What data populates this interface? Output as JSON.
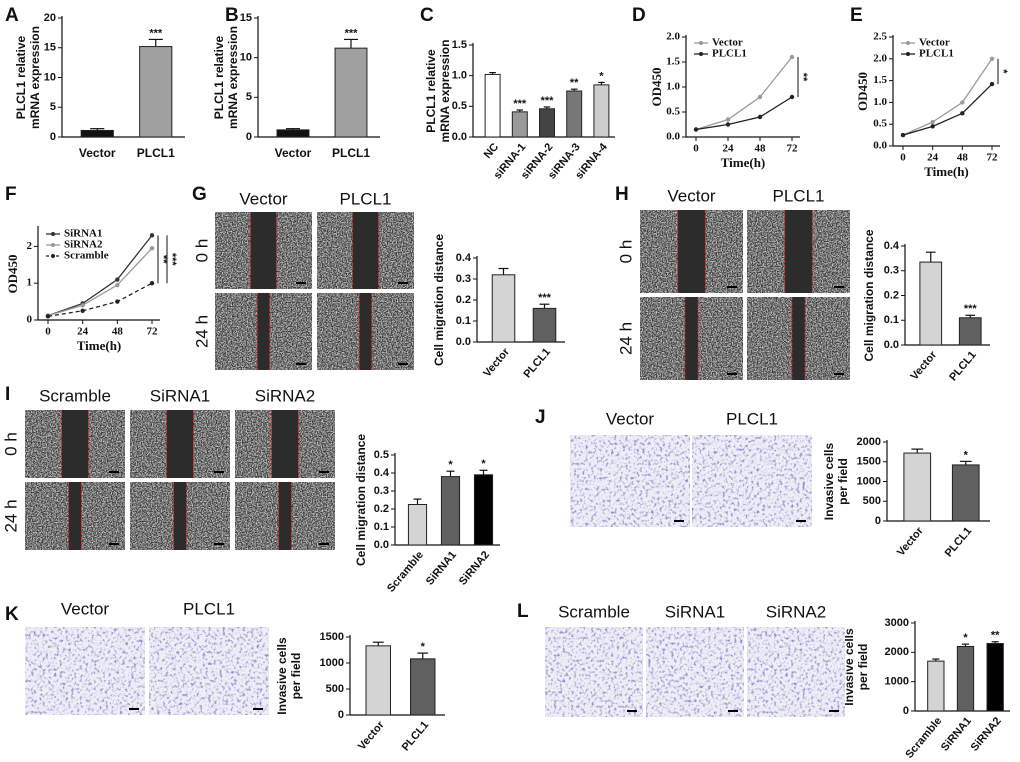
{
  "chart_data": [
    {
      "type": "bar",
      "panel": "A",
      "ylabel": [
        "PLCL1 relative",
        "mRNA expression"
      ],
      "categories": [
        "Vector",
        "PLCL1"
      ],
      "values": [
        1.1,
        15.2
      ],
      "errors": [
        0.3,
        1.2
      ],
      "annotations": [
        null,
        "***"
      ],
      "colors": [
        "#111111",
        "#a0a0a0"
      ],
      "ylim": [
        0,
        20
      ],
      "yticks": [
        0,
        5,
        10,
        15,
        20
      ]
    },
    {
      "type": "bar",
      "panel": "B",
      "ylabel": [
        "PLCL1 relative",
        "mRNA expression"
      ],
      "categories": [
        "Vector",
        "PLCL1"
      ],
      "values": [
        0.9,
        11.2
      ],
      "errors": [
        0.15,
        1.1
      ],
      "annotations": [
        null,
        "***"
      ],
      "colors": [
        "#111111",
        "#a0a0a0"
      ],
      "ylim": [
        0,
        15
      ],
      "yticks": [
        0,
        5,
        10,
        15
      ]
    },
    {
      "type": "bar",
      "panel": "C",
      "ylabel": [
        "PLCL1 relative",
        "mRNA expression"
      ],
      "categories": [
        "NC",
        "siRNA-1",
        "siRNA-2",
        "siRNA-3",
        "siRNA-4"
      ],
      "values": [
        1.02,
        0.41,
        0.46,
        0.75,
        0.85
      ],
      "errors": [
        0.03,
        0.03,
        0.03,
        0.03,
        0.04
      ],
      "annotations": [
        null,
        "***",
        "***",
        "**",
        "*"
      ],
      "colors": [
        "#ffffff",
        "#999999",
        "#444444",
        "#777777",
        "#cccccc"
      ],
      "ylim": [
        0,
        1.5
      ],
      "yticks": [
        {
          "value": 0,
          "label": "0.0"
        },
        0.5,
        {
          "value": 1,
          "label": "1.0"
        },
        1.5
      ]
    },
    {
      "type": "line",
      "panel": "D",
      "xlabel": "Time(h)",
      "ylabel": [
        "OD450"
      ],
      "x": [
        0,
        24,
        48,
        72
      ],
      "series": [
        {
          "name": "Vector",
          "color": "#9a9a9a",
          "values": [
            0.15,
            0.35,
            0.8,
            1.6
          ]
        },
        {
          "name": "PLCL1",
          "color": "#222222",
          "values": [
            0.15,
            0.25,
            0.4,
            0.8
          ]
        }
      ],
      "annotations": [
        "**"
      ],
      "xlim": [
        0,
        72
      ],
      "xticks": [
        0,
        24,
        48,
        72
      ],
      "ylim": [
        0,
        2
      ],
      "yticks": [
        {
          "value": 0,
          "label": "0.0"
        },
        0.5,
        {
          "value": 1,
          "label": "1.0"
        },
        1.5,
        {
          "value": 2,
          "label": "2.0"
        }
      ]
    },
    {
      "type": "line",
      "panel": "E",
      "xlabel": "Time(h)",
      "ylabel": [
        "OD450"
      ],
      "x": [
        0,
        24,
        48,
        72
      ],
      "series": [
        {
          "name": "Vector",
          "color": "#9a9a9a",
          "values": [
            0.25,
            0.55,
            1.0,
            2.0
          ]
        },
        {
          "name": "PLCL1",
          "color": "#222222",
          "values": [
            0.25,
            0.45,
            0.75,
            1.42
          ]
        }
      ],
      "annotations": [
        "*"
      ],
      "xlim": [
        0,
        72
      ],
      "xticks": [
        0,
        24,
        48,
        72
      ],
      "ylim": [
        0,
        2.5
      ],
      "yticks": [
        {
          "value": 0,
          "label": "0.0"
        },
        0.5,
        {
          "value": 1,
          "label": "1.0"
        },
        1.5,
        {
          "value": 2,
          "label": "2.0"
        },
        2.5
      ]
    },
    {
      "type": "line",
      "panel": "F",
      "xlabel": "Time(h)",
      "ylabel": [
        "OD450"
      ],
      "x": [
        0,
        24,
        48,
        72
      ],
      "series": [
        {
          "name": "SiRNA1",
          "color": "#333333",
          "values": [
            0.12,
            0.45,
            1.1,
            2.3
          ]
        },
        {
          "name": "SiRNA2",
          "color": "#999999",
          "values": [
            0.12,
            0.4,
            0.95,
            1.95
          ]
        },
        {
          "name": "Scramble",
          "color": "#222222",
          "dashed": true,
          "values": [
            0.1,
            0.25,
            0.5,
            1.0
          ]
        }
      ],
      "annotations": [
        "**",
        "***"
      ],
      "xlim": [
        0,
        72
      ],
      "xticks": [
        0,
        24,
        48,
        72
      ],
      "ylim": [
        0,
        2.5
      ],
      "yticks": [
        0,
        1,
        2
      ]
    },
    {
      "type": "bar",
      "panel": "G",
      "images": {
        "columns": [
          "Vector",
          "PLCL1"
        ],
        "rows": [
          "0 h",
          "24 h"
        ]
      },
      "ylabel": [
        "Cell migration distance"
      ],
      "categories": [
        "Vector",
        "PLCL1"
      ],
      "values": [
        0.32,
        0.16
      ],
      "errors": [
        0.03,
        0.02
      ],
      "annotations": [
        null,
        "***"
      ],
      "colors": [
        "#d4d4d4",
        "#606060"
      ],
      "ylim": [
        0,
        0.4
      ],
      "yticks": [
        {
          "value": 0,
          "label": "0.0"
        },
        0.1,
        0.2,
        0.3,
        0.4
      ]
    },
    {
      "type": "bar",
      "panel": "H",
      "images": {
        "columns": [
          "Vector",
          "PLCL1"
        ],
        "rows": [
          "0 h",
          "24 h"
        ]
      },
      "ylabel": [
        "Cell migration distance"
      ],
      "categories": [
        "Vector",
        "PLCL1"
      ],
      "values": [
        0.335,
        0.11
      ],
      "errors": [
        0.04,
        0.01
      ],
      "annotations": [
        null,
        "***"
      ],
      "colors": [
        "#d4d4d4",
        "#606060"
      ],
      "ylim": [
        0,
        0.4
      ],
      "yticks": [
        {
          "value": 0,
          "label": "0.0"
        },
        0.1,
        0.2,
        0.3,
        0.4
      ]
    },
    {
      "type": "bar",
      "panel": "I",
      "images": {
        "columns": [
          "Scramble",
          "SiRNA1",
          "SiRNA2"
        ],
        "rows": [
          "0 h",
          "24 h"
        ]
      },
      "ylabel": [
        "Cell migration distance"
      ],
      "categories": [
        "Scramble",
        "SiRNA1",
        "SiRNA2"
      ],
      "values": [
        0.225,
        0.38,
        0.39
      ],
      "errors": [
        0.03,
        0.03,
        0.025
      ],
      "annotations": [
        null,
        "*",
        "*"
      ],
      "colors": [
        "#d4d4d4",
        "#606060",
        "#000000"
      ],
      "ylim": [
        0,
        0.5
      ],
      "yticks": [
        {
          "value": 0,
          "label": "0.0"
        },
        0.1,
        0.2,
        0.3,
        0.4,
        0.5
      ]
    },
    {
      "type": "bar",
      "panel": "J",
      "images": {
        "columns": [
          "Vector",
          "PLCL1"
        ]
      },
      "ylabel": [
        "Invasive cells",
        "per field"
      ],
      "categories": [
        "Vector",
        "PLCL1"
      ],
      "values": [
        1720,
        1420
      ],
      "errors": [
        100,
        90
      ],
      "annotations": [
        null,
        "*"
      ],
      "colors": [
        "#d4d4d4",
        "#606060"
      ],
      "ylim": [
        0,
        2000
      ],
      "yticks": [
        0,
        500,
        1000,
        1500,
        2000
      ]
    },
    {
      "type": "bar",
      "panel": "K",
      "images": {
        "columns": [
          "Vector",
          "PLCL1"
        ]
      },
      "ylabel": [
        "Invasive cells",
        "per field"
      ],
      "categories": [
        "Vector",
        "PLCL1"
      ],
      "values": [
        1330,
        1080
      ],
      "errors": [
        70,
        110
      ],
      "annotations": [
        null,
        "*"
      ],
      "colors": [
        "#d4d4d4",
        "#606060"
      ],
      "ylim": [
        0,
        1500
      ],
      "yticks": [
        0,
        500,
        1000,
        1500
      ]
    },
    {
      "type": "bar",
      "panel": "L",
      "images": {
        "columns": [
          "Scramble",
          "SiRNA1",
          "SiRNA2"
        ]
      },
      "ylabel": [
        "Invasive cells",
        "per field"
      ],
      "categories": [
        "Scramble",
        "SiRNA1",
        "SiRNA2"
      ],
      "values": [
        1700,
        2200,
        2300
      ],
      "errors": [
        70,
        80,
        60
      ],
      "annotations": [
        null,
        "*",
        "**"
      ],
      "colors": [
        "#d4d4d4",
        "#606060",
        "#000000"
      ],
      "ylim": [
        0,
        3000
      ],
      "yticks": [
        0,
        1000,
        2000,
        3000
      ]
    }
  ]
}
